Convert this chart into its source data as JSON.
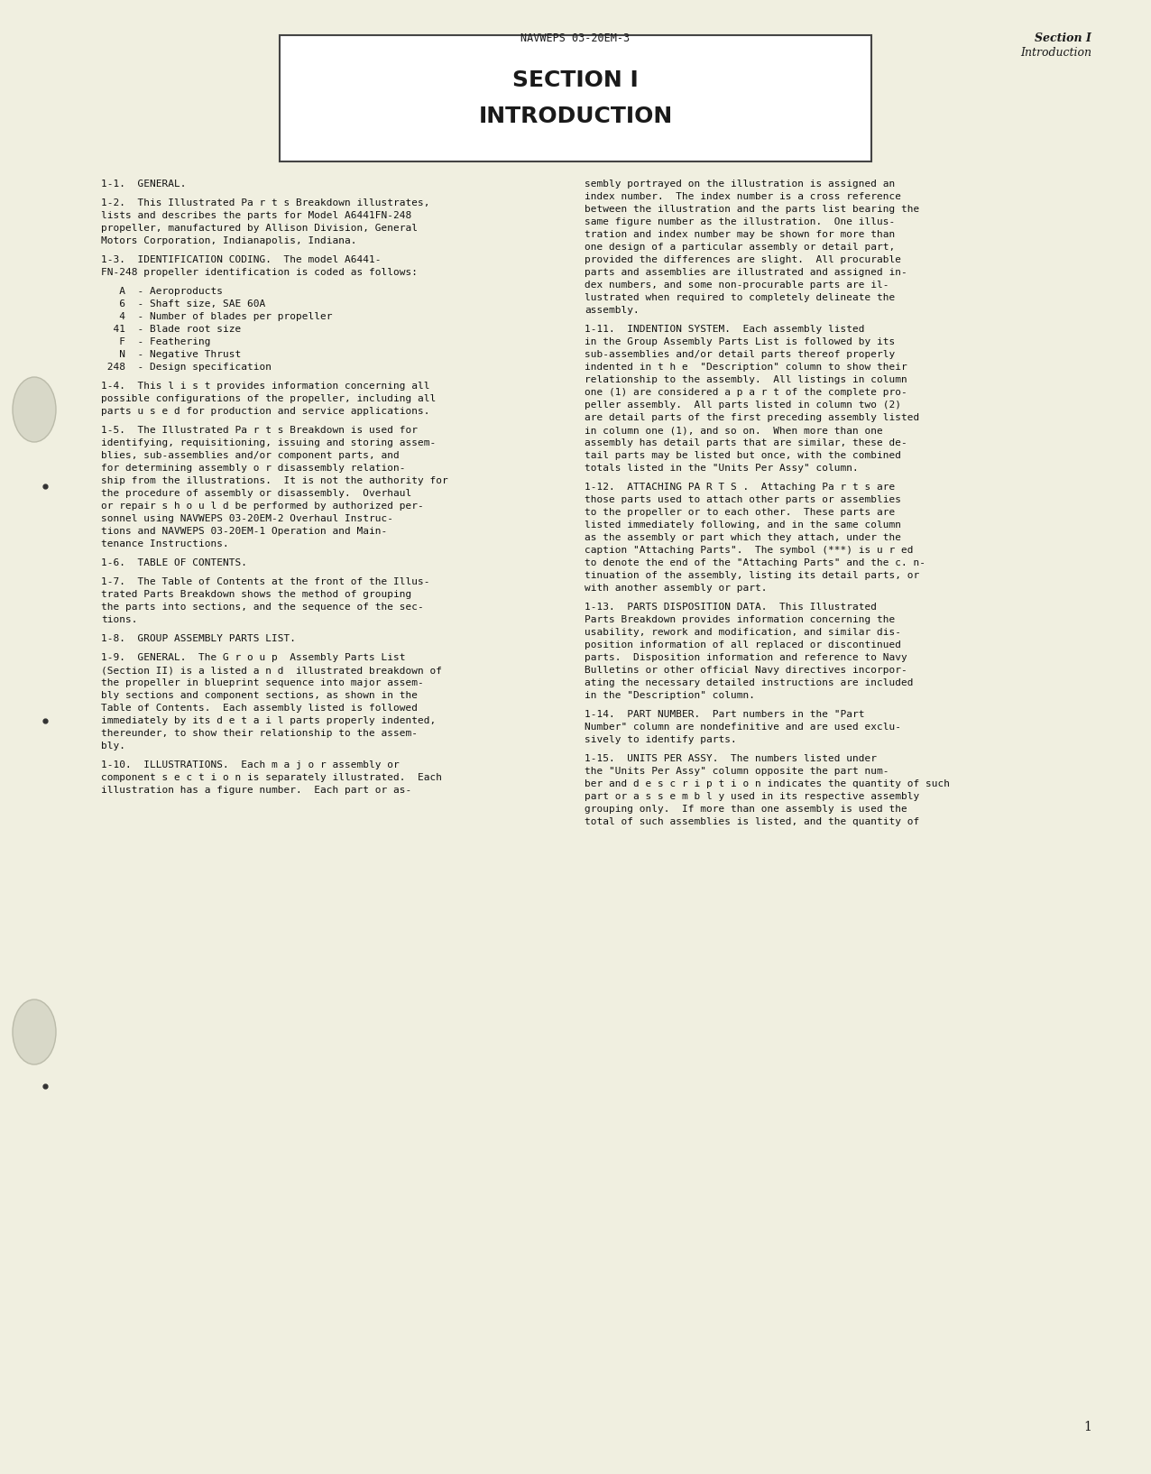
{
  "bg_color": "#f0efe0",
  "text_color": "#1a1a1a",
  "header_center": "NAVWEPS 03-20EM-3",
  "header_right_line1": "Section I",
  "header_right_line2": "Introduction",
  "box_title_line1": "SECTION I",
  "box_title_line2": "INTRODUCTION",
  "left_paragraphs": [
    {
      "id": "1-1",
      "heading": true,
      "lines": [
        "1-1.  GENERAL."
      ]
    },
    {
      "id": "1-2",
      "heading": false,
      "lines": [
        "1-2.  This Illustrated Pa r t s Breakdown illustrates,",
        "lists and describes the parts for Model A6441FN-248",
        "propeller, manufactured by Allison Division, General",
        "Motors Corporation, Indianapolis, Indiana."
      ]
    },
    {
      "id": "1-3",
      "heading": false,
      "lines": [
        "1-3.  IDENTIFICATION CODING.  The model A6441-",
        "FN-248 propeller identification is coded as follows:"
      ]
    },
    {
      "id": "coding",
      "indent": true,
      "lines": [
        "   A  - Aeroproducts",
        "   6  - Shaft size, SAE 60A",
        "   4  - Number of blades per propeller",
        "  41  - Blade root size",
        "   F  - Feathering",
        "   N  - Negative Thrust",
        " 248  - Design specification"
      ]
    },
    {
      "id": "1-4",
      "heading": false,
      "lines": [
        "1-4.  This l i s t provides information concerning all",
        "possible configurations of the propeller, including all",
        "parts u s e d for production and service applications."
      ]
    },
    {
      "id": "1-5",
      "heading": false,
      "lines": [
        "1-5.  The Illustrated Pa r t s Breakdown is used for",
        "identifying, requisitioning, issuing and storing assem-",
        "blies, sub-assemblies and/or component parts, and",
        "for determining assembly o r disassembly relation-",
        "ship from the illustrations.  It is not the authority for",
        "the procedure of assembly or disassembly.  Overhaul",
        "or repair s h o u l d be performed by authorized per-",
        "sonnel using NAVWEPS 03-20EM-2 Overhaul Instruc-",
        "tions and NAVWEPS 03-20EM-1 Operation and Main-",
        "tenance Instructions."
      ]
    },
    {
      "id": "1-6",
      "heading": true,
      "lines": [
        "1-6.  TABLE OF CONTENTS."
      ]
    },
    {
      "id": "1-7",
      "heading": false,
      "lines": [
        "1-7.  The Table of Contents at the front of the Illus-",
        "trated Parts Breakdown shows the method of grouping",
        "the parts into sections, and the sequence of the sec-",
        "tions."
      ]
    },
    {
      "id": "1-8",
      "heading": true,
      "lines": [
        "1-8.  GROUP ASSEMBLY PARTS LIST."
      ]
    },
    {
      "id": "1-9",
      "heading": false,
      "lines": [
        "1-9.  GENERAL.  The G r o u p  Assembly Parts List",
        "(Section II) is a listed a n d  illustrated breakdown of",
        "the propeller in blueprint sequence into major assem-",
        "bly sections and component sections, as shown in the",
        "Table of Contents.  Each assembly listed is followed",
        "immediately by its d e t a i l parts properly indented,",
        "thereunder, to show their relationship to the assem-",
        "bly."
      ]
    },
    {
      "id": "1-10",
      "heading": false,
      "lines": [
        "1-10.  ILLUSTRATIONS.  Each m a j o r assembly or",
        "component s e c t i o n is separately illustrated.  Each",
        "illustration has a figure number.  Each part or as-"
      ]
    }
  ],
  "right_paragraphs": [
    {
      "id": "cont",
      "heading": false,
      "lines": [
        "sembly portrayed on the illustration is assigned an",
        "index number.  The index number is a cross reference",
        "between the illustration and the parts list bearing the",
        "same figure number as the illustration.  One illus-",
        "tration and index number may be shown for more than",
        "one design of a particular assembly or detail part,",
        "provided the differences are slight.  All procurable",
        "parts and assemblies are illustrated and assigned in-",
        "dex numbers, and some non-procurable parts are il-",
        "lustrated when required to completely delineate the",
        "assembly."
      ]
    },
    {
      "id": "1-11",
      "heading": false,
      "lines": [
        "1-11.  INDENTION SYSTEM.  Each assembly listed",
        "in the Group Assembly Parts List is followed by its",
        "sub-assemblies and/or detail parts thereof properly",
        "indented in t h e  \"Description\" column to show their",
        "relationship to the assembly.  All listings in column",
        "one (1) are considered a p a r t of the complete pro-",
        "peller assembly.  All parts listed in column two (2)",
        "are detail parts of the first preceding assembly listed",
        "in column one (1), and so on.  When more than one",
        "assembly has detail parts that are similar, these de-",
        "tail parts may be listed but once, with the combined",
        "totals listed in the \"Units Per Assy\" column."
      ]
    },
    {
      "id": "1-12",
      "heading": false,
      "lines": [
        "1-12.  ATTACHING PA R T S .  Attaching Pa r t s are",
        "those parts used to attach other parts or assemblies",
        "to the propeller or to each other.  These parts are",
        "listed immediately following, and in the same column",
        "as the assembly or part which they attach, under the",
        "caption \"Attaching Parts\".  The symbol (***) is u r ed",
        "to denote the end of the \"Attaching Parts\" and the c. n-",
        "tinuation of the assembly, listing its detail parts, or",
        "with another assembly or part."
      ]
    },
    {
      "id": "1-13",
      "heading": false,
      "lines": [
        "1-13.  PARTS DISPOSITION DATA.  This Illustrated",
        "Parts Breakdown provides information concerning the",
        "usability, rework and modification, and similar dis-",
        "position information of all replaced or discontinued",
        "parts.  Disposition information and reference to Navy",
        "Bulletins or other official Navy directives incorpor-",
        "ating the necessary detailed instructions are included",
        "in the \"Description\" column."
      ]
    },
    {
      "id": "1-14",
      "heading": false,
      "lines": [
        "1-14.  PART NUMBER.  Part numbers in the \"Part",
        "Number\" column are nondefinitive and are used exclu-",
        "sively to identify parts."
      ]
    },
    {
      "id": "1-15",
      "heading": false,
      "lines": [
        "1-15.  UNITS PER ASSY.  The numbers listed under",
        "the \"Units Per Assy\" column opposite the part num-",
        "ber and d e s c r i p t i o n indicates the quantity of such",
        "part or a s s e m b l y used in its respective assembly",
        "grouping only.  If more than one assembly is used the",
        "total of such assemblies is listed, and the quantity of"
      ]
    }
  ],
  "page_number": "1"
}
